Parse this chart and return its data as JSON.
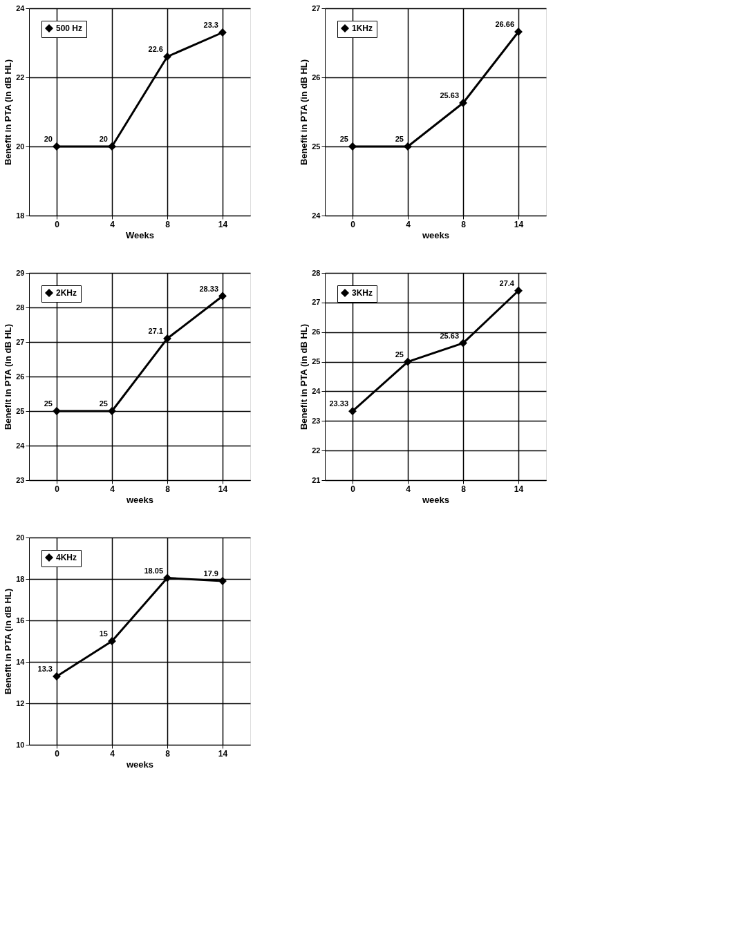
{
  "chart_data": [
    {
      "type": "line",
      "xlabel": "Weeks",
      "ylabel": "Benefit in PTA (in dB HL)",
      "categories": [
        "0",
        "4",
        "8",
        "14"
      ],
      "ylim": [
        18,
        24
      ],
      "yticks": [
        18,
        20,
        22,
        24
      ],
      "grid": true,
      "legend": "top left",
      "marker": "diamond",
      "line_style": "solid",
      "series": [
        {
          "name": "500 Hz",
          "color": "#000000",
          "values": [
            20,
            20,
            22.6,
            23.3
          ],
          "value_labels": [
            "20",
            "20",
            "22.6",
            "23.3"
          ]
        }
      ]
    },
    {
      "type": "line",
      "xlabel": "weeks",
      "ylabel": "Benefit in PTA (in dB HL)",
      "categories": [
        "0",
        "4",
        "8",
        "14"
      ],
      "ylim": [
        24,
        27
      ],
      "yticks": [
        24,
        25,
        26,
        27
      ],
      "grid": true,
      "legend": "top left",
      "marker": "diamond",
      "line_style": "solid",
      "series": [
        {
          "name": "1KHz",
          "color": "#000000",
          "values": [
            25,
            25,
            25.63,
            26.66
          ],
          "value_labels": [
            "25",
            "25",
            "25.63",
            "26.66"
          ]
        }
      ]
    },
    {
      "type": "line",
      "xlabel": "weeks",
      "ylabel": "Benefit in PTA (in dB HL)",
      "categories": [
        "0",
        "4",
        "8",
        "14"
      ],
      "ylim": [
        23,
        29
      ],
      "yticks": [
        23,
        24,
        25,
        26,
        27,
        28,
        29
      ],
      "grid": true,
      "legend": "top left",
      "marker": "diamond",
      "line_style": "solid",
      "series": [
        {
          "name": "2KHz",
          "color": "#000000",
          "values": [
            25,
            25,
            27.1,
            28.33
          ],
          "value_labels": [
            "25",
            "25",
            "27.1",
            "28.33"
          ]
        }
      ]
    },
    {
      "type": "line",
      "xlabel": "weeks",
      "ylabel": "Benefit in PTA (in dB HL)",
      "categories": [
        "0",
        "4",
        "8",
        "14"
      ],
      "ylim": [
        21,
        28
      ],
      "yticks": [
        21,
        22,
        23,
        24,
        25,
        26,
        27,
        28
      ],
      "grid": true,
      "legend": "top left",
      "marker": "diamond",
      "line_style": "solid",
      "series": [
        {
          "name": "3KHz",
          "color": "#000000",
          "values": [
            23.33,
            25,
            25.63,
            27.4
          ],
          "value_labels": [
            "23.33",
            "25",
            "25.63",
            "27.4"
          ]
        }
      ]
    },
    {
      "type": "line",
      "xlabel": "weeks",
      "ylabel": "Benefit in PTA (in dB HL)",
      "categories": [
        "0",
        "4",
        "8",
        "14"
      ],
      "ylim": [
        10,
        20
      ],
      "yticks": [
        10,
        12,
        14,
        16,
        18,
        20
      ],
      "grid": true,
      "legend": "top left",
      "marker": "diamond",
      "line_style": "solid",
      "series": [
        {
          "name": "4KHz",
          "color": "#000000",
          "values": [
            13.3,
            15,
            18.05,
            17.9
          ],
          "value_labels": [
            "13.3",
            "15",
            "18.05",
            "17.9"
          ]
        }
      ]
    }
  ]
}
